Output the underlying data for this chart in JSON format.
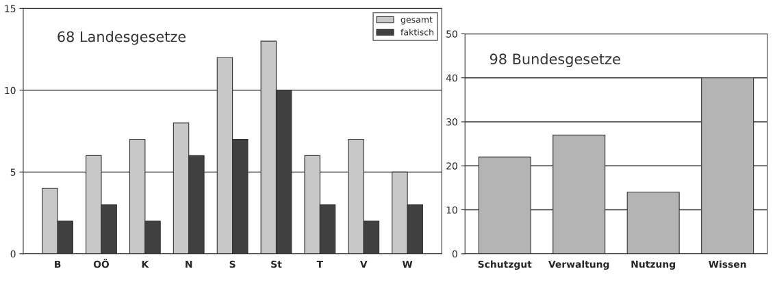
{
  "chart_data": [
    {
      "type": "bar",
      "title": "68 Landesgesetze",
      "categories": [
        "B",
        "OÖ",
        "K",
        "N",
        "S",
        "St",
        "T",
        "V",
        "W"
      ],
      "series": [
        {
          "name": "gesamt",
          "color": "#c8c8c8",
          "values": [
            4,
            6,
            7,
            8,
            12,
            13,
            6,
            7,
            5
          ]
        },
        {
          "name": "faktisch",
          "color": "#404040",
          "values": [
            2,
            3,
            2,
            6,
            7,
            10,
            3,
            2,
            3
          ]
        }
      ],
      "ylim": [
        0,
        15
      ],
      "yticks": [
        0,
        5,
        10,
        15
      ],
      "grid": "y",
      "legend": "top right"
    },
    {
      "type": "bar",
      "title": "98 Bundesgesetze",
      "categories": [
        "Schutzgut",
        "Verwaltung",
        "Nutzung",
        "Wissen"
      ],
      "series": [
        {
          "color": "#b4b4b4",
          "values": [
            22,
            27,
            14,
            40
          ]
        }
      ],
      "ylim": [
        0,
        50
      ],
      "yticks": [
        0,
        10,
        20,
        30,
        40,
        50
      ],
      "grid": "y"
    }
  ]
}
